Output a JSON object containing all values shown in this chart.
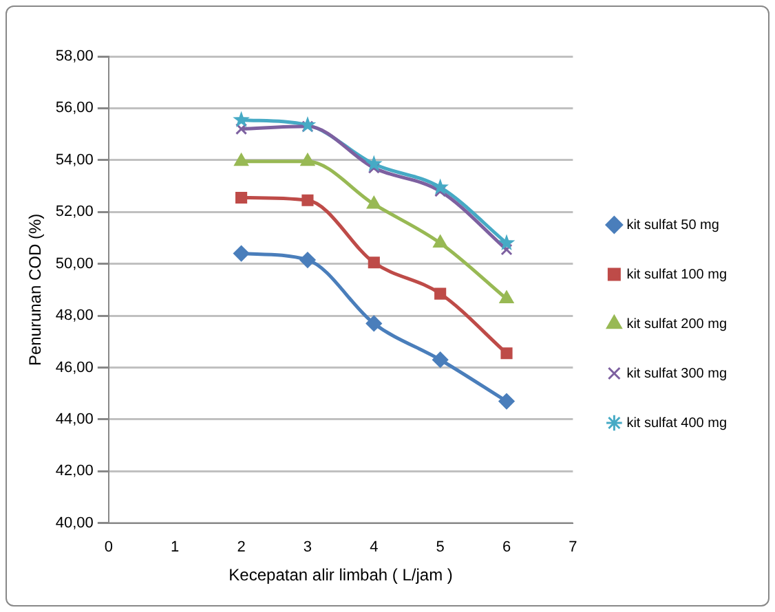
{
  "chart_data": {
    "type": "line",
    "xlabel": "Kecepatan alir limbah ( L/jam )",
    "ylabel": "Penurunan COD (%)",
    "x": [
      2,
      3,
      4,
      5,
      6
    ],
    "series": [
      {
        "name": "kit sulfat 50 mg",
        "color": "#4a7ebb",
        "marker": "diamond",
        "values": [
          50.4,
          50.15,
          47.7,
          46.3,
          44.7
        ]
      },
      {
        "name": "kit sulfat 100 mg",
        "color": "#be4b48",
        "marker": "square",
        "values": [
          52.55,
          52.45,
          50.05,
          48.85,
          46.55
        ]
      },
      {
        "name": "kit sulfat 200 mg",
        "color": "#98b954",
        "marker": "triangle",
        "values": [
          53.95,
          53.95,
          52.3,
          50.8,
          48.65
        ]
      },
      {
        "name": "kit sulfat 300 mg",
        "color": "#7d60a0",
        "marker": "cross",
        "values": [
          55.2,
          55.3,
          53.7,
          52.8,
          50.55
        ]
      },
      {
        "name": "kit sulfat 400 mg",
        "color": "#46aac5",
        "marker": "star",
        "values": [
          55.55,
          55.35,
          53.85,
          52.95,
          50.8
        ]
      }
    ],
    "xlim": [
      0,
      7
    ],
    "xticks": [
      0,
      1,
      2,
      3,
      4,
      5,
      6,
      7
    ],
    "ylim": [
      40,
      58
    ],
    "yticks": [
      {
        "value": 40,
        "label": "40,00"
      },
      {
        "value": 42,
        "label": "42,00"
      },
      {
        "value": 44,
        "label": "44,00"
      },
      {
        "value": 46,
        "label": "46,00"
      },
      {
        "value": 48,
        "label": "48,00"
      },
      {
        "value": 50,
        "label": "50,00"
      },
      {
        "value": 52,
        "label": "52,00"
      },
      {
        "value": 54,
        "label": "54,00"
      },
      {
        "value": 56,
        "label": "56,00"
      },
      {
        "value": 58,
        "label": "58,00"
      }
    ],
    "grid": "y",
    "legend": "right",
    "line_style": "solid"
  }
}
